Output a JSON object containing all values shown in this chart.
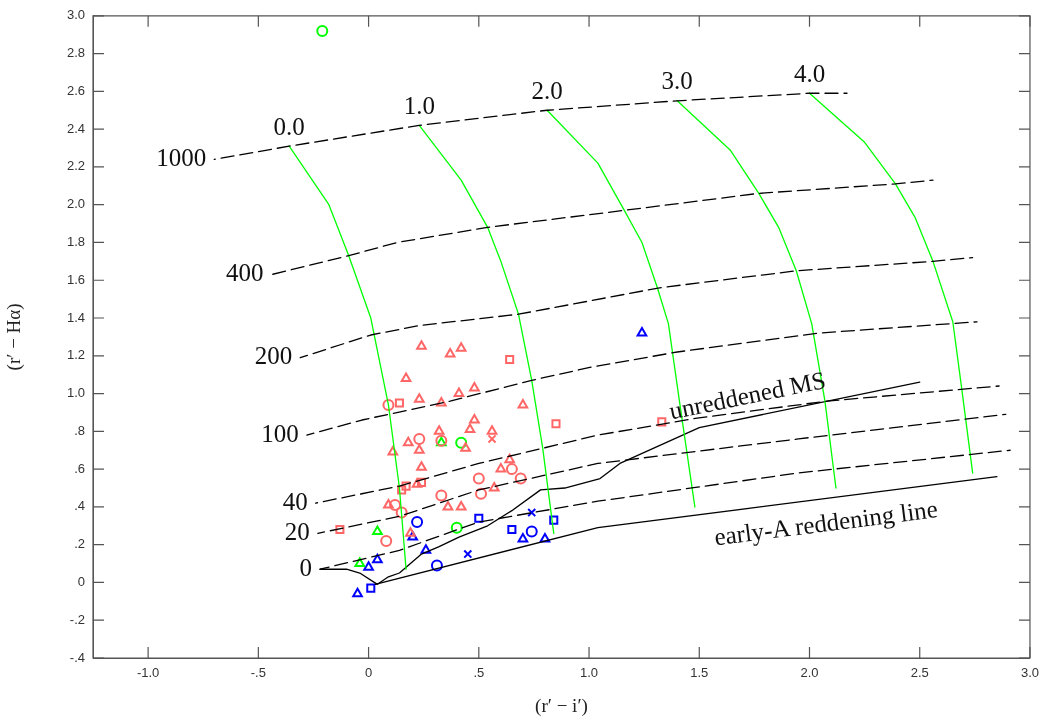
{
  "chart_data": {
    "type": "scatter",
    "xlabel": "(r′ − i′)",
    "ylabel": "(r′ − Hα)",
    "xlim": [
      -1.25,
      3.0
    ],
    "ylim": [
      -0.4,
      3.0
    ],
    "grid": false,
    "xticks": [
      {
        "value": -1,
        "label": "-1.0"
      },
      {
        "value": -0.5,
        "label": "-.5"
      },
      0,
      {
        "value": 0.5,
        "label": ".5"
      },
      {
        "value": 1,
        "label": "1.0"
      },
      {
        "value": 1.5,
        "label": "1.5"
      },
      {
        "value": 2,
        "label": "2.0"
      },
      {
        "value": 2.5,
        "label": "2.5"
      },
      {
        "value": 3,
        "label": "3.0"
      }
    ],
    "yticks": [
      {
        "value": -0.4,
        "label": "-.4"
      },
      {
        "value": -0.2,
        "label": "-.2"
      },
      0,
      {
        "value": 0.2,
        "label": ".2"
      },
      {
        "value": 0.4,
        "label": ".4"
      },
      {
        "value": 0.6,
        "label": ".6"
      },
      {
        "value": 0.8,
        "label": ".8"
      },
      {
        "value": 1,
        "label": "1.0"
      },
      {
        "value": 1.2,
        "label": "1.2"
      },
      {
        "value": 1.4,
        "label": "1.4"
      },
      {
        "value": 1.6,
        "label": "1.6"
      },
      {
        "value": 1.8,
        "label": "1.8"
      },
      {
        "value": 2,
        "label": "2.0"
      },
      {
        "value": 2.2,
        "label": "2.2"
      },
      {
        "value": 2.4,
        "label": "2.4"
      },
      {
        "value": 2.6,
        "label": "2.6"
      },
      {
        "value": 2.8,
        "label": "2.8"
      },
      {
        "value": 3,
        "label": "3.0"
      }
    ],
    "series": [
      {
        "type": "line",
        "name": "1000",
        "line_style": "dashed",
        "color": "#000000",
        "x": [
          -0.7,
          -0.36,
          0.23,
          0.81,
          1.4,
          2.0,
          2.17
        ],
        "values": [
          2.24,
          2.31,
          2.42,
          2.5,
          2.55,
          2.59,
          2.59
        ]
      },
      {
        "type": "line",
        "name": "400",
        "line_style": "dashed",
        "color": "#000000",
        "x": [
          -0.44,
          -0.09,
          0.13,
          0.54,
          1.16,
          1.77,
          2.39,
          2.56
        ],
        "values": [
          1.63,
          1.73,
          1.8,
          1.88,
          1.97,
          2.06,
          2.11,
          2.13
        ]
      },
      {
        "type": "line",
        "name": "200",
        "line_style": "dashed",
        "color": "#000000",
        "x": [
          -0.31,
          0.01,
          0.23,
          0.68,
          1.32,
          1.94,
          2.56,
          2.74
        ],
        "values": [
          1.19,
          1.31,
          1.36,
          1.42,
          1.56,
          1.65,
          1.7,
          1.72
        ]
      },
      {
        "type": "line",
        "name": "100",
        "line_style": "dashed",
        "color": "#000000",
        "x": [
          -0.28,
          -0.03,
          0.37,
          0.74,
          1.01,
          1.4,
          2.04,
          2.76
        ],
        "values": [
          0.78,
          0.86,
          0.96,
          1.07,
          1.14,
          1.22,
          1.32,
          1.38
        ]
      },
      {
        "type": "line",
        "name": "40",
        "line_style": "dashed",
        "color": "#000000",
        "x": [
          -0.24,
          0.14,
          0.5,
          1.04,
          1.49,
          2.08,
          2.86
        ],
        "values": [
          0.42,
          0.51,
          0.63,
          0.78,
          0.87,
          0.96,
          1.04
        ]
      },
      {
        "type": "line",
        "name": "20",
        "line_style": "dashed",
        "color": "#000000",
        "x": [
          -0.23,
          0.14,
          0.5,
          1.04,
          1.95,
          2.89
        ],
        "values": [
          0.26,
          0.35,
          0.49,
          0.63,
          0.76,
          0.89
        ]
      },
      {
        "type": "line",
        "name": "0",
        "line_style": "dashed",
        "color": "#000000",
        "x": [
          -0.22,
          0.14,
          0.5,
          1.04,
          1.95,
          2.91
        ],
        "values": [
          0.07,
          0.17,
          0.32,
          0.43,
          0.58,
          0.7
        ]
      },
      {
        "type": "line",
        "name": "0.0",
        "line_style": "solid",
        "color": "#00ff00",
        "x": [
          -0.36,
          -0.18,
          -0.09,
          0.01,
          0.09,
          0.14,
          0.17
        ],
        "values": [
          2.31,
          2.0,
          1.73,
          1.4,
          0.94,
          0.5,
          0.07
        ]
      },
      {
        "type": "line",
        "name": "1.0",
        "line_style": "solid",
        "color": "#00ff00",
        "x": [
          0.23,
          0.42,
          0.54,
          0.6,
          0.68,
          0.74,
          0.79,
          0.84
        ],
        "values": [
          2.42,
          2.13,
          1.88,
          1.7,
          1.42,
          1.07,
          0.71,
          0.26
        ]
      },
      {
        "type": "line",
        "name": "2.0",
        "line_style": "solid",
        "color": "#00ff00",
        "x": [
          0.81,
          1.04,
          1.16,
          1.24,
          1.31,
          1.36,
          1.41,
          1.48
        ],
        "values": [
          2.5,
          2.22,
          1.97,
          1.8,
          1.56,
          1.37,
          0.96,
          0.4
        ]
      },
      {
        "type": "line",
        "name": "3.0",
        "line_style": "solid",
        "color": "#00ff00",
        "x": [
          1.4,
          1.64,
          1.77,
          1.86,
          1.94,
          2.01,
          2.07,
          2.12
        ],
        "values": [
          2.55,
          2.29,
          2.06,
          1.88,
          1.65,
          1.37,
          0.96,
          0.5
        ]
      },
      {
        "type": "line",
        "name": "4.0",
        "line_style": "solid",
        "color": "#00ff00",
        "x": [
          2.0,
          2.25,
          2.39,
          2.48,
          2.56,
          2.65,
          2.69,
          2.74
        ],
        "values": [
          2.59,
          2.33,
          2.11,
          1.93,
          1.7,
          1.38,
          1.03,
          0.58
        ]
      },
      {
        "type": "line",
        "name": "unreddened MS",
        "line_style": "solid",
        "color": "#000000",
        "x": [
          -0.22,
          -0.1,
          -0.04,
          0.04,
          0.09,
          0.14,
          0.24,
          0.32,
          0.41,
          0.54,
          0.65,
          0.78,
          0.89,
          1.05,
          1.14,
          1.5,
          2.5
        ],
        "values": [
          0.07,
          0.07,
          0.05,
          -0.01,
          0.03,
          0.05,
          0.15,
          0.19,
          0.24,
          0.3,
          0.38,
          0.49,
          0.5,
          0.55,
          0.63,
          0.82,
          1.06
        ]
      },
      {
        "type": "line",
        "name": "early-A reddening line",
        "line_style": "solid",
        "color": "#000000",
        "x": [
          0.03,
          1.04,
          2.85
        ],
        "values": [
          -0.01,
          0.29,
          0.56
        ]
      },
      {
        "marker": "triangle",
        "color": "#ff6666",
        "x": [
          0.24,
          0.37,
          0.42,
          0.17,
          0.41,
          0.48,
          0.23,
          0.33,
          0.48,
          0.46,
          0.32,
          0.56,
          0.18,
          0.23,
          0.11,
          0.44,
          0.24,
          0.22,
          0.36,
          0.42,
          0.09,
          0.19,
          0.7,
          0.64,
          0.6,
          0.57
        ],
        "values": [
          1.25,
          1.21,
          1.24,
          1.08,
          1.0,
          1.03,
          0.97,
          0.95,
          0.86,
          0.81,
          0.8,
          0.8,
          0.74,
          0.7,
          0.69,
          0.71,
          0.61,
          0.52,
          0.4,
          0.4,
          0.41,
          0.26,
          0.94,
          0.65,
          0.6,
          0.5
        ]
      },
      {
        "marker": "circle",
        "color": "#ff6666",
        "x": [
          0.09,
          0.23,
          0.33,
          0.5,
          0.33,
          0.51,
          0.12,
          0.15,
          0.08,
          0.65,
          0.69
        ],
        "values": [
          0.94,
          0.76,
          0.75,
          0.55,
          0.46,
          0.47,
          0.41,
          0.37,
          0.22,
          0.6,
          0.55
        ]
      },
      {
        "marker": "square",
        "color": "#ff6666",
        "x": [
          0.14,
          0.15,
          0.17,
          0.24,
          -0.13,
          0.64,
          0.85,
          1.33
        ],
        "values": [
          0.95,
          0.49,
          0.51,
          0.53,
          0.28,
          1.18,
          0.84,
          0.85
        ]
      },
      {
        "marker": "cross",
        "color": "#ff6666",
        "x": [
          0.56
        ],
        "values": [
          0.76
        ]
      },
      {
        "marker": "triangle",
        "color": "#00ff00",
        "x": [
          0.33,
          0.04,
          -0.04
        ],
        "values": [
          0.74,
          0.27,
          0.1
        ]
      },
      {
        "marker": "circle",
        "color": "#00ff00",
        "x": [
          0.42,
          0.4,
          -0.21
        ],
        "values": [
          0.74,
          0.29,
          2.92
        ]
      },
      {
        "marker": "triangle",
        "color": "#0000ff",
        "x": [
          0.2,
          0.26,
          0.04,
          0.0,
          -0.05,
          1.24,
          0.7,
          0.8
        ],
        "values": [
          0.24,
          0.17,
          0.12,
          0.08,
          -0.06,
          1.32,
          0.23,
          0.23
        ]
      },
      {
        "marker": "circle",
        "color": "#0000ff",
        "x": [
          0.22,
          0.31,
          0.74
        ],
        "values": [
          0.32,
          0.09,
          0.27
        ]
      },
      {
        "marker": "square",
        "color": "#0000ff",
        "x": [
          0.5,
          0.01,
          0.65,
          0.84
        ],
        "values": [
          0.34,
          -0.03,
          0.28,
          0.33
        ]
      },
      {
        "marker": "cross",
        "color": "#0000ff",
        "x": [
          0.45,
          0.74
        ],
        "values": [
          0.15,
          0.37
        ]
      }
    ]
  }
}
